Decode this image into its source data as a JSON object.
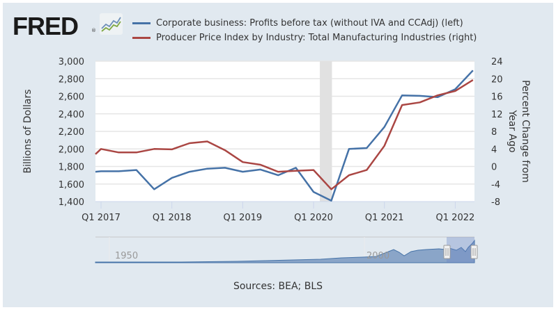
{
  "header": {
    "logo_text": "FRED",
    "logo_registered": "®",
    "logo_icon": "line-chart-icon"
  },
  "legend": [
    {
      "label": "Corporate business: Profits before tax (without IVA and CCAdj) (left)",
      "color": "#4572a7"
    },
    {
      "label": "Producer Price Index by Industry: Total Manufacturing Industries (right)",
      "color": "#aa4643"
    }
  ],
  "navigator": {
    "labels": [
      "1950",
      "2000"
    ],
    "handle_icon": "drag-handle-icon"
  },
  "source_text": "Sources: BEA; BLS",
  "chart_data": {
    "type": "line",
    "title": "",
    "xlabel": "",
    "ylabel": "Billions of Dollars",
    "ylabel_right": "Percent Change from Year Ago",
    "x": [
      "Q4 2016",
      "Q1 2017",
      "Q2 2017",
      "Q3 2017",
      "Q4 2017",
      "Q1 2018",
      "Q2 2018",
      "Q3 2018",
      "Q4 2018",
      "Q1 2019",
      "Q2 2019",
      "Q3 2019",
      "Q4 2019",
      "Q1 2020",
      "Q2 2020",
      "Q3 2020",
      "Q4 2020",
      "Q1 2021",
      "Q2 2021",
      "Q3 2021",
      "Q4 2021",
      "Q1 2022",
      "Q2 2022"
    ],
    "x_tick_labels": [
      "Q1 2017",
      "Q1 2018",
      "Q1 2019",
      "Q1 2020",
      "Q1 2021",
      "Q1 2022"
    ],
    "ylim": [
      1400,
      3000
    ],
    "y_ticks": [
      "1,400",
      "1,600",
      "1,800",
      "2,000",
      "2,200",
      "2,400",
      "2,600",
      "2,800",
      "3,000"
    ],
    "ylim_right": [
      -8,
      24
    ],
    "y_ticks_right": [
      "-8",
      "-4",
      "0",
      "4",
      "8",
      "12",
      "16",
      "20",
      "24"
    ],
    "grid": true,
    "legend_position": "top",
    "recession_shading": {
      "from": "Q1 2020",
      "to": "Q2 2020"
    },
    "series": [
      {
        "name": "Corporate business: Profits before tax (without IVA and CCAdj)",
        "axis": "left",
        "color": "#4572a7",
        "values": [
          1740,
          1745,
          1745,
          1760,
          1540,
          1670,
          1740,
          1775,
          1785,
          1740,
          1765,
          1700,
          1785,
          1510,
          1410,
          2000,
          2010,
          2250,
          2610,
          2605,
          2590,
          2680,
          2895
        ]
      },
      {
        "name": "Producer Price Index by Industry: Total Manufacturing Industries",
        "axis": "right",
        "color": "#aa4643",
        "values": [
          2.8,
          4.0,
          3.2,
          3.2,
          4.0,
          3.9,
          5.3,
          5.7,
          3.7,
          1.0,
          0.4,
          -1.2,
          -1.0,
          -0.8,
          -5.2,
          -2.0,
          -0.8,
          4.7,
          14.0,
          14.6,
          16.2,
          17.2,
          19.7
        ]
      }
    ]
  }
}
